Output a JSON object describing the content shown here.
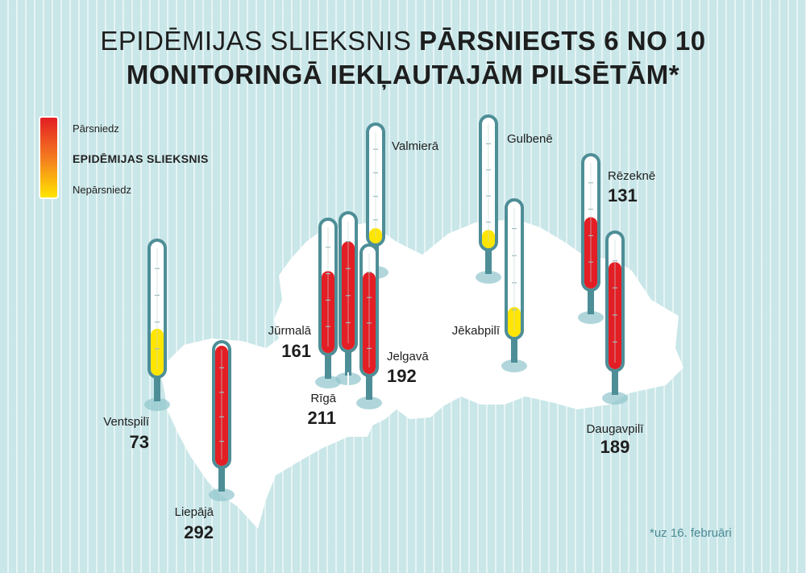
{
  "title": {
    "line1_light": "Epidēmijas slieksnis",
    "line1_bold": "pārsniegts 6 no 10",
    "line2_bold": "monitoringā iekļautajām pilsētām*"
  },
  "legend": {
    "top": "Pārsniedz",
    "middle": "EPIDĒMIJAS SLIEKSNIS",
    "bottom": "Nepārsniedz"
  },
  "footnote": "*uz 16. februāri",
  "colors": {
    "exceeds": "#e31e24",
    "not_exceeds": "#ffe500",
    "tube_outline": "#4e8e97",
    "bulb": "#4e8e97",
    "map": "#ffffff",
    "background": "#c9e6e8"
  },
  "chart_data": {
    "type": "bar",
    "title": "Epidēmijas slieksnis pārsniegts 6 no 10 monitoringā iekļautajām pilsētām*",
    "categories": [
      "Ventspilī",
      "Liepājā",
      "Jūrmalā",
      "Rīgā",
      "Valmierā",
      "Jelgavā",
      "Gulbenē",
      "Jēkabpilī",
      "Rēzeknē",
      "Daugavpilī"
    ],
    "values": [
      73,
      292,
      161,
      211,
      null,
      192,
      null,
      null,
      131,
      189
    ],
    "exceeds_threshold": [
      false,
      true,
      true,
      true,
      false,
      true,
      false,
      false,
      true,
      true
    ],
    "fill_level": [
      0.35,
      0.98,
      0.62,
      0.8,
      0.13,
      0.8,
      0.14,
      0.22,
      0.54,
      0.79
    ],
    "note": "*uz 16. februāri"
  }
}
